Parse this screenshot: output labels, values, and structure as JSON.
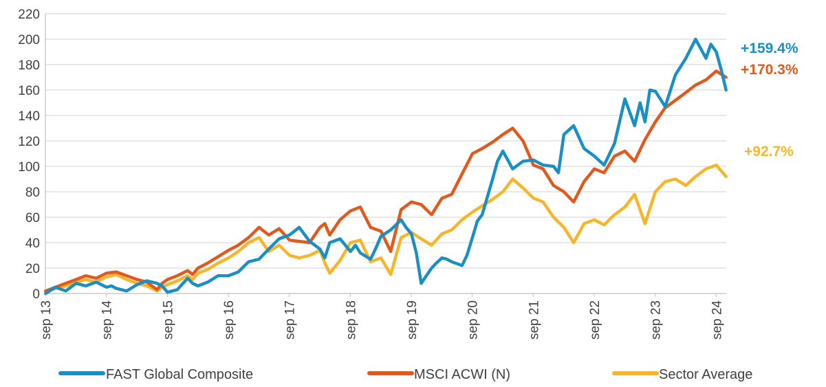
{
  "chart_data": {
    "type": "line",
    "title": "",
    "xlabel": "",
    "ylabel": "",
    "ylim": [
      0,
      220
    ],
    "yticks": [
      0,
      20,
      40,
      60,
      80,
      100,
      120,
      140,
      160,
      180,
      200,
      220
    ],
    "xlim": [
      2013.667,
      2024.833
    ],
    "xticks": [
      {
        "label": "sep 13",
        "x": 2013.667
      },
      {
        "label": "sep 14",
        "x": 2014.667
      },
      {
        "label": "sep 15",
        "x": 2015.667
      },
      {
        "label": "sep 16",
        "x": 2016.667
      },
      {
        "label": "sep 17",
        "x": 2017.667
      },
      {
        "label": "sep 18",
        "x": 2018.667
      },
      {
        "label": "sep 19",
        "x": 2019.667
      },
      {
        "label": "sep 20",
        "x": 2020.667
      },
      {
        "label": "sep 21",
        "x": 2021.667
      },
      {
        "label": "sep 22",
        "x": 2022.667
      },
      {
        "label": "sep 23",
        "x": 2023.667
      },
      {
        "label": "sep 24",
        "x": 2024.667
      }
    ],
    "grid": true,
    "legend_position": "bottom",
    "series": [
      {
        "name": "FAST Global Composite",
        "color": "#1B8FC4",
        "end_label": "+159.4%",
        "x": [
          2013.67,
          2013.83,
          2014.0,
          2014.17,
          2014.33,
          2014.5,
          2014.67,
          2014.75,
          2014.83,
          2015.0,
          2015.17,
          2015.33,
          2015.5,
          2015.58,
          2015.67,
          2015.83,
          2016.0,
          2016.08,
          2016.17,
          2016.33,
          2016.5,
          2016.67,
          2016.83,
          2017.0,
          2017.17,
          2017.33,
          2017.5,
          2017.67,
          2017.83,
          2018.0,
          2018.17,
          2018.25,
          2018.33,
          2018.5,
          2018.67,
          2018.75,
          2018.83,
          2019.0,
          2019.08,
          2019.17,
          2019.33,
          2019.5,
          2019.58,
          2019.67,
          2019.75,
          2019.83,
          2020.0,
          2020.08,
          2020.17,
          2020.25,
          2020.33,
          2020.5,
          2020.58,
          2020.67,
          2020.75,
          2020.83,
          2021.0,
          2021.08,
          2021.17,
          2021.33,
          2021.5,
          2021.67,
          2021.83,
          2022.0,
          2022.08,
          2022.17,
          2022.33,
          2022.5,
          2022.67,
          2022.83,
          2023.0,
          2023.17,
          2023.33,
          2023.42,
          2023.5,
          2023.58,
          2023.67,
          2023.83,
          2024.0,
          2024.17,
          2024.33,
          2024.5,
          2024.58,
          2024.67,
          2024.75,
          2024.83
        ],
        "y": [
          0,
          5,
          2,
          8,
          6,
          9,
          5,
          6,
          4,
          2,
          7,
          10,
          8,
          6,
          1,
          3,
          12,
          8,
          6,
          9,
          14,
          14,
          17,
          25,
          27,
          35,
          43,
          46,
          52,
          41,
          35,
          28,
          40,
          43,
          33,
          38,
          32,
          27,
          35,
          45,
          50,
          58,
          52,
          47,
          32,
          8,
          20,
          24,
          28,
          27,
          25,
          22,
          30,
          44,
          57,
          62,
          90,
          104,
          112,
          98,
          104,
          105,
          101,
          100,
          95,
          125,
          132,
          114,
          108,
          101,
          118,
          153,
          132,
          150,
          135,
          160,
          159,
          147,
          172,
          185,
          200,
          185,
          196,
          190,
          176,
          160
        ]
      },
      {
        "name": "MSCI ACWI (N)",
        "color": "#E05A1E",
        "end_label": "+170.3%",
        "x": [
          2013.67,
          2013.83,
          2014.0,
          2014.17,
          2014.33,
          2014.5,
          2014.67,
          2014.83,
          2015.0,
          2015.17,
          2015.33,
          2015.5,
          2015.58,
          2015.67,
          2015.83,
          2016.0,
          2016.08,
          2016.17,
          2016.33,
          2016.5,
          2016.67,
          2016.83,
          2017.0,
          2017.17,
          2017.33,
          2017.5,
          2017.67,
          2017.83,
          2018.0,
          2018.17,
          2018.25,
          2018.33,
          2018.5,
          2018.67,
          2018.83,
          2019.0,
          2019.17,
          2019.33,
          2019.5,
          2019.67,
          2019.83,
          2020.0,
          2020.17,
          2020.33,
          2020.5,
          2020.67,
          2020.83,
          2021.0,
          2021.17,
          2021.33,
          2021.5,
          2021.67,
          2021.83,
          2022.0,
          2022.17,
          2022.33,
          2022.5,
          2022.67,
          2022.83,
          2023.0,
          2023.17,
          2023.33,
          2023.5,
          2023.67,
          2023.83,
          2024.0,
          2024.17,
          2024.33,
          2024.5,
          2024.67,
          2024.83
        ],
        "y": [
          2,
          5,
          8,
          11,
          14,
          12,
          16,
          17,
          14,
          11,
          9,
          3,
          8,
          11,
          14,
          18,
          15,
          20,
          24,
          29,
          34,
          38,
          44,
          52,
          46,
          51,
          42,
          41,
          40,
          52,
          55,
          46,
          58,
          65,
          68,
          52,
          49,
          33,
          66,
          72,
          70,
          62,
          75,
          78,
          94,
          110,
          114,
          119,
          125,
          130,
          120,
          101,
          98,
          85,
          80,
          72,
          88,
          98,
          95,
          108,
          112,
          104,
          121,
          135,
          146,
          152,
          158,
          164,
          168,
          175,
          170
        ]
      },
      {
        "name": "Sector Average",
        "color": "#F7B52C",
        "end_label": "+92.7%",
        "x": [
          2013.67,
          2013.83,
          2014.0,
          2014.17,
          2014.33,
          2014.5,
          2014.67,
          2014.83,
          2015.0,
          2015.17,
          2015.33,
          2015.5,
          2015.58,
          2015.67,
          2015.83,
          2016.0,
          2016.08,
          2016.17,
          2016.33,
          2016.5,
          2016.67,
          2016.83,
          2017.0,
          2017.17,
          2017.33,
          2017.5,
          2017.67,
          2017.83,
          2018.0,
          2018.17,
          2018.25,
          2018.33,
          2018.5,
          2018.67,
          2018.83,
          2019.0,
          2019.17,
          2019.33,
          2019.5,
          2019.67,
          2019.83,
          2020.0,
          2020.17,
          2020.33,
          2020.5,
          2020.67,
          2020.83,
          2021.0,
          2021.17,
          2021.33,
          2021.5,
          2021.67,
          2021.83,
          2022.0,
          2022.17,
          2022.33,
          2022.5,
          2022.67,
          2022.83,
          2023.0,
          2023.17,
          2023.33,
          2023.5,
          2023.67,
          2023.83,
          2024.0,
          2024.17,
          2024.33,
          2024.5,
          2024.67,
          2024.83
        ],
        "y": [
          1,
          4,
          6,
          9,
          11,
          9,
          13,
          15,
          11,
          8,
          6,
          2,
          5,
          7,
          10,
          14,
          11,
          16,
          19,
          24,
          28,
          33,
          40,
          44,
          33,
          38,
          30,
          28,
          30,
          34,
          24,
          16,
          26,
          40,
          42,
          25,
          28,
          15,
          44,
          48,
          43,
          38,
          47,
          50,
          58,
          64,
          69,
          74,
          80,
          90,
          83,
          75,
          72,
          60,
          52,
          40,
          55,
          58,
          54,
          62,
          68,
          78,
          55,
          80,
          88,
          90,
          85,
          92,
          98,
          101,
          92
        ]
      }
    ]
  }
}
